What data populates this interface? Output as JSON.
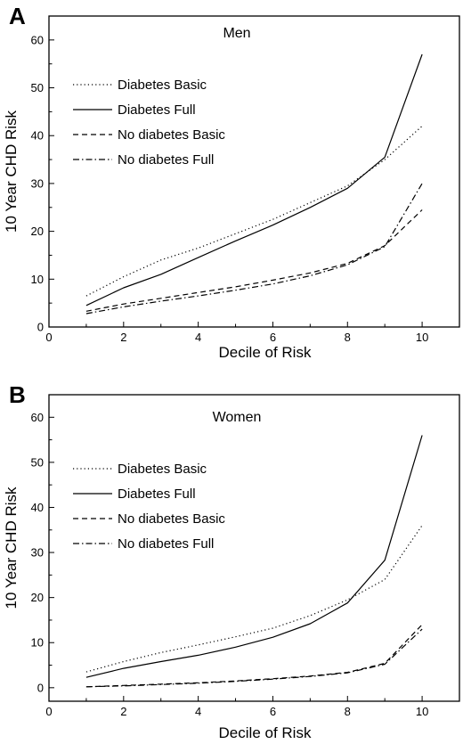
{
  "chart_data": [
    {
      "type": "line",
      "panel_label": "A",
      "title": "Men",
      "xlabel": "Decile of Risk",
      "ylabel": "10 Year CHD Risk",
      "xlim": [
        0,
        11
      ],
      "ylim": [
        0,
        65
      ],
      "xticks": [
        0,
        2,
        4,
        6,
        8,
        10
      ],
      "yticks": [
        0,
        10,
        20,
        30,
        40,
        50,
        60
      ],
      "grid": false,
      "legend_position": "upper-left",
      "x": [
        1,
        2,
        3,
        4,
        5,
        6,
        7,
        8,
        9,
        10
      ],
      "series": [
        {
          "name": "Diabetes Basic",
          "style": "dotted",
          "values": [
            6.5,
            10.5,
            14,
            16.5,
            19.5,
            22.5,
            26,
            29.5,
            35,
            42
          ]
        },
        {
          "name": "Diabetes Full",
          "style": "solid",
          "values": [
            4.5,
            8.2,
            11,
            14.5,
            18,
            21.3,
            25,
            29,
            35.5,
            57
          ]
        },
        {
          "name": "No diabetes Basic",
          "style": "dashed",
          "values": [
            3.3,
            4.8,
            6,
            7.2,
            8.4,
            9.8,
            11.3,
            13.3,
            17,
            24.5
          ]
        },
        {
          "name": "No diabetes Full",
          "style": "dashdot",
          "values": [
            2.8,
            4.2,
            5.4,
            6.5,
            7.7,
            9,
            10.7,
            13,
            16.8,
            30
          ]
        }
      ]
    },
    {
      "type": "line",
      "panel_label": "B",
      "title": "Women",
      "xlabel": "Decile of Risk",
      "ylabel": "10 Year CHD Risk",
      "xlim": [
        0,
        11
      ],
      "ylim": [
        -3,
        65
      ],
      "xticks": [
        0,
        2,
        4,
        6,
        8,
        10
      ],
      "yticks": [
        0,
        10,
        20,
        30,
        40,
        50,
        60
      ],
      "grid": false,
      "legend_position": "upper-left",
      "x": [
        1,
        2,
        3,
        4,
        5,
        6,
        7,
        8,
        9,
        10
      ],
      "series": [
        {
          "name": "Diabetes Basic",
          "style": "dotted",
          "values": [
            3.5,
            5.8,
            7.8,
            9.5,
            11.3,
            13.2,
            16,
            19.5,
            24,
            36
          ]
        },
        {
          "name": "Diabetes Full",
          "style": "solid",
          "values": [
            2.3,
            4.3,
            5.8,
            7.2,
            9,
            11.2,
            14.2,
            18.8,
            28.3,
            56
          ]
        },
        {
          "name": "No diabetes Basic",
          "style": "dashed",
          "values": [
            0.2,
            0.5,
            0.8,
            1.1,
            1.5,
            2,
            2.6,
            3.4,
            5.4,
            14
          ]
        },
        {
          "name": "No diabetes Full",
          "style": "dashdot",
          "values": [
            0.2,
            0.4,
            0.7,
            1,
            1.4,
            1.9,
            2.5,
            3.3,
            5.2,
            13
          ]
        }
      ]
    }
  ]
}
